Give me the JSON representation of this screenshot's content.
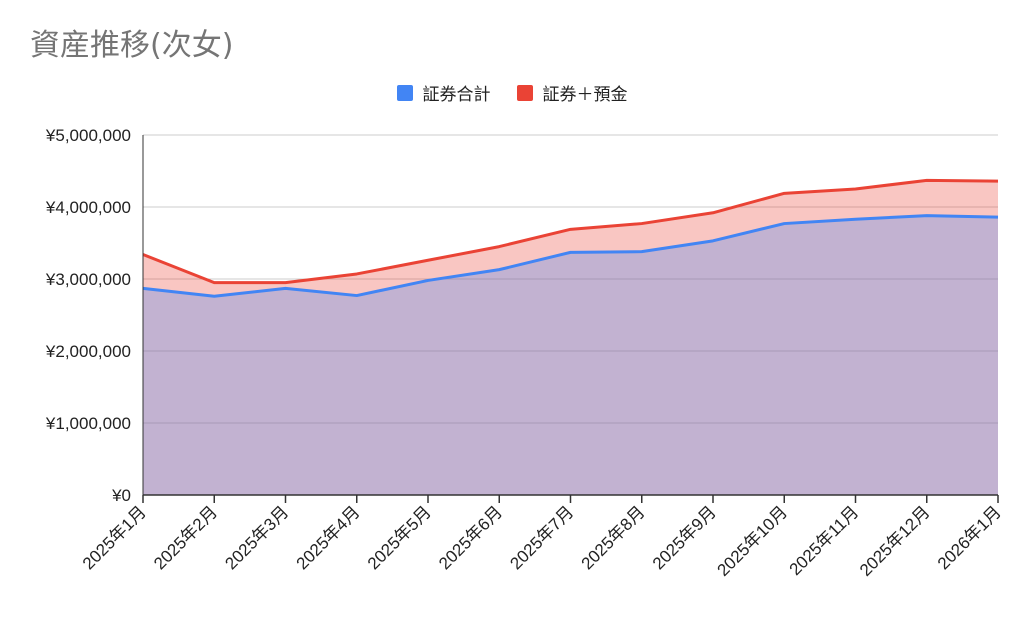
{
  "chart_data": {
    "type": "area",
    "title": "資産推移(次女)",
    "categories": [
      "2025年1月",
      "2025年2月",
      "2025年3月",
      "2025年4月",
      "2025年5月",
      "2025年6月",
      "2025年7月",
      "2025年8月",
      "2025年9月",
      "2025年10月",
      "2025年11月",
      "2025年12月",
      "2026年1月"
    ],
    "series": [
      {
        "name": "証券合計",
        "color": "#4285f4",
        "values": [
          2870000,
          2760000,
          2870000,
          2770000,
          2980000,
          3130000,
          3370000,
          3380000,
          3530000,
          3770000,
          3830000,
          3880000,
          3860000
        ]
      },
      {
        "name": "証券＋預金",
        "color": "#ea4335",
        "values": [
          3340000,
          2950000,
          2950000,
          3070000,
          3260000,
          3450000,
          3690000,
          3770000,
          3920000,
          4190000,
          4250000,
          4370000,
          4360000
        ]
      }
    ],
    "ylim": [
      0,
      5000000
    ],
    "yticks": [
      "¥0",
      "¥1,000,000",
      "¥2,000,000",
      "¥3,000,000",
      "¥4,000,000",
      "¥5,000,000"
    ],
    "grid": true,
    "legend_position": "top-center"
  }
}
